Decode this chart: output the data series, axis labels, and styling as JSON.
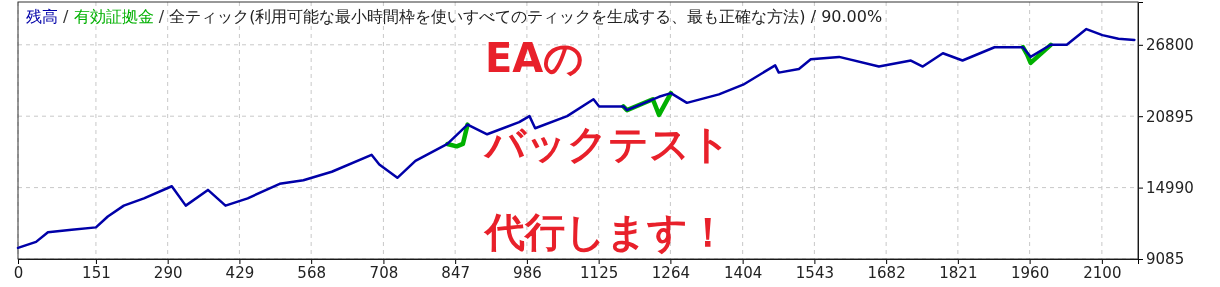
{
  "chart_data": {
    "type": "line",
    "title": "全ティック(利用可能な最小時間枠を使いすべてのティックを生成する、最も正確な方法) / 90.00%",
    "xlim": [
      0,
      2170
    ],
    "xticks": [
      0,
      151,
      290,
      429,
      568,
      708,
      847,
      986,
      1125,
      1264,
      1404,
      1543,
      1682,
      1821,
      1960,
      2100
    ],
    "ylim": [
      9085,
      30340
    ],
    "yticks": [
      9085,
      14990,
      20895,
      26800
    ],
    "grid": true,
    "legend": "top left",
    "series": [
      {
        "name": "有効証拠金",
        "color": "#00b000",
        "x": [
          832,
          850,
          862,
          871,
          1100,
          1173,
          1180,
          1230,
          1242,
          1265,
          1600,
          1947,
          1955,
          1962,
          2001
        ],
        "values": [
          18600,
          18400,
          18600,
          20200,
          null,
          21700,
          21400,
          22300,
          21000,
          22800,
          null,
          26600,
          26000,
          25300,
          26800
        ]
      },
      {
        "name": "残高",
        "color": "#0000a8",
        "x": [
          0,
          35,
          58,
          104,
          151,
          174,
          205,
          244,
          298,
          325,
          368,
          402,
          445,
          507,
          553,
          608,
          685,
          700,
          735,
          770,
          832,
          871,
          909,
          971,
          991,
          1002,
          1064,
          1115,
          1126,
          1173,
          1180,
          1242,
          1265,
          1296,
          1358,
          1405,
          1467,
          1474,
          1513,
          1536,
          1591,
          1668,
          1730,
          1753,
          1792,
          1830,
          1892,
          1947,
          1962,
          2001,
          2032,
          2070,
          2101,
          2132,
          2163
        ],
        "values": [
          10000,
          10500,
          11300,
          11500,
          11700,
          12600,
          13500,
          14100,
          15100,
          13500,
          14800,
          13500,
          14100,
          15300,
          15600,
          16300,
          17700,
          16900,
          15800,
          17200,
          18600,
          20200,
          19400,
          20400,
          20900,
          19900,
          20900,
          22300,
          21700,
          21700,
          21400,
          22500,
          22800,
          22000,
          22700,
          23500,
          25100,
          24500,
          24800,
          25600,
          25800,
          25000,
          25500,
          25000,
          26100,
          25500,
          26600,
          26600,
          25800,
          26800,
          26800,
          28100,
          27600,
          27300,
          27200
        ]
      }
    ],
    "annotations": [
      "/",
      "/",
      "EAの",
      "バックテスト",
      "代行します！"
    ]
  }
}
